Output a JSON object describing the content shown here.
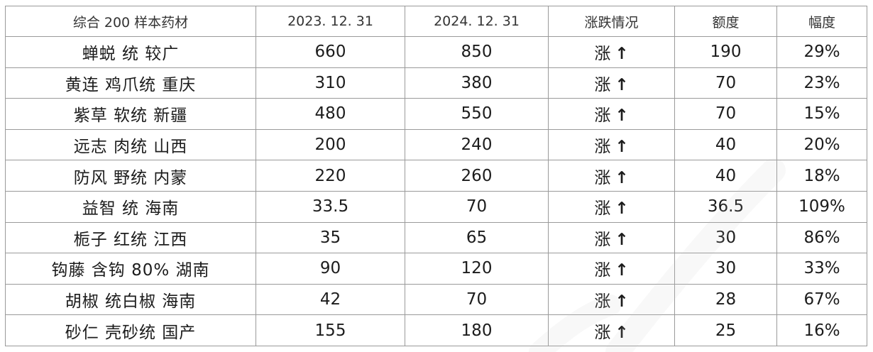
{
  "table": {
    "headers": [
      "综合 200 样本药材",
      "2023. 12. 31",
      "2024. 12. 31",
      "涨跌情况",
      "额度",
      "幅度"
    ],
    "rows": [
      {
        "name": "蝉蜕  统  较广",
        "v2023": "660",
        "v2024": "850",
        "trend": "涨",
        "amount": "190",
        "percent": "29%"
      },
      {
        "name": "黄连  鸡爪统  重庆",
        "v2023": "310",
        "v2024": "380",
        "trend": "涨",
        "amount": "70",
        "percent": "23%"
      },
      {
        "name": "紫草  软统  新疆",
        "v2023": "480",
        "v2024": "550",
        "trend": "涨",
        "amount": "70",
        "percent": "15%"
      },
      {
        "name": "远志  肉统  山西",
        "v2023": "200",
        "v2024": "240",
        "trend": "涨",
        "amount": "40",
        "percent": "20%"
      },
      {
        "name": "防风  野统  内蒙",
        "v2023": "220",
        "v2024": "260",
        "trend": "涨",
        "amount": "40",
        "percent": "18%"
      },
      {
        "name": "益智  统  海南",
        "v2023": "33.5",
        "v2024": "70",
        "trend": "涨",
        "amount": "36.5",
        "percent": "109%"
      },
      {
        "name": "栀子  红统  江西",
        "v2023": "35",
        "v2024": "65",
        "trend": "涨",
        "amount": "30",
        "percent": "86%"
      },
      {
        "name": "钩藤  含钩 80%  湖南",
        "v2023": "90",
        "v2024": "120",
        "trend": "涨",
        "amount": "30",
        "percent": "33%"
      },
      {
        "name": "胡椒  统白椒  海南",
        "v2023": "42",
        "v2024": "70",
        "trend": "涨",
        "amount": "28",
        "percent": "67%"
      },
      {
        "name": "砂仁  壳砂统  国产",
        "v2023": "155",
        "v2024": "180",
        "trend": "涨",
        "amount": "25",
        "percent": "16%"
      }
    ]
  },
  "colors": {
    "up": "#e21818",
    "border": "#9a9a9a",
    "text": "#1c1c1c"
  },
  "icons": {
    "trend_up": "arrow-up-icon"
  }
}
